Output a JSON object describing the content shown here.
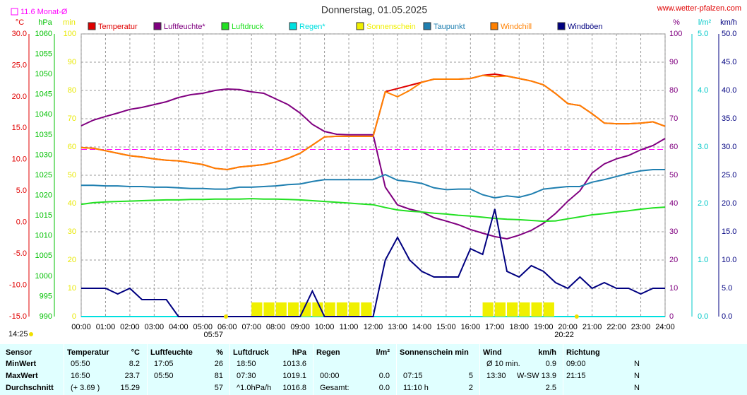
{
  "chart_data": {
    "type": "line",
    "title": "Donnerstag, 01.05.2025",
    "source": "www.wetter-pfalzen.com",
    "monthly_mean": {
      "label": "11.6 Monat-Ø",
      "value": 11.6,
      "color": "#ff00ff"
    },
    "current_time": "14:25",
    "sunrise": {
      "label": "05:57",
      "value": 5.95
    },
    "sunset": {
      "label": "20:22",
      "value": 20.367
    },
    "grid": true,
    "xlim": [
      0,
      24
    ],
    "xticks": [
      {
        "value": 0,
        "label": "00:00"
      },
      {
        "value": 1,
        "label": "01:00"
      },
      {
        "value": 2,
        "label": "02:00"
      },
      {
        "value": 3,
        "label": "03:00"
      },
      {
        "value": 4,
        "label": "04:00"
      },
      {
        "value": 5,
        "label": "05:00"
      },
      {
        "value": 6,
        "label": "06:00"
      },
      {
        "value": 7,
        "label": "07:00"
      },
      {
        "value": 8,
        "label": "08:00"
      },
      {
        "value": 9,
        "label": "09:00"
      },
      {
        "value": 10,
        "label": "10:00"
      },
      {
        "value": 11,
        "label": "11:00"
      },
      {
        "value": 12,
        "label": "12:00"
      },
      {
        "value": 13,
        "label": "13:00"
      },
      {
        "value": 14,
        "label": "14:00"
      },
      {
        "value": 15,
        "label": "15:00"
      },
      {
        "value": 16,
        "label": "16:00"
      },
      {
        "value": 17,
        "label": "17:00"
      },
      {
        "value": 18,
        "label": "18:00"
      },
      {
        "value": 19,
        "label": "19:00"
      },
      {
        "value": 20,
        "label": "20:00"
      },
      {
        "value": 21,
        "label": "21:00"
      },
      {
        "value": 22,
        "label": "22:00"
      },
      {
        "value": 23,
        "label": "23:00"
      },
      {
        "value": 24,
        "label": "24:00"
      }
    ],
    "axes": [
      {
        "name": "°C",
        "color": "#e00000",
        "lim": [
          -15,
          30
        ],
        "ticks": [
          {
            "value": -15,
            "label": "-15.0"
          },
          {
            "value": -10,
            "label": "-10.0"
          },
          {
            "value": -5,
            "label": "-5.0"
          },
          {
            "value": 0,
            "label": "0.0"
          },
          {
            "value": 5,
            "label": "5.0"
          },
          {
            "value": 10,
            "label": "10.0"
          },
          {
            "value": 15,
            "label": "15.0"
          },
          {
            "value": 20,
            "label": "20.0"
          },
          {
            "value": 25,
            "label": "25.0"
          },
          {
            "value": 30,
            "label": "30.0"
          }
        ]
      },
      {
        "name": "hPa",
        "color": "#00c000",
        "lim": [
          990,
          1060
        ],
        "ticks": [
          990,
          995,
          1000,
          1005,
          1010,
          1015,
          1020,
          1025,
          1030,
          1035,
          1040,
          1045,
          1050,
          1055,
          1060
        ]
      },
      {
        "name": "min",
        "color": "#e8e800",
        "lim": [
          0,
          100
        ],
        "ticks": [
          0,
          10,
          20,
          30,
          40,
          50,
          60,
          70,
          80,
          90,
          100
        ]
      },
      {
        "name": "%",
        "color": "#800080",
        "lim": [
          0,
          100
        ],
        "ticks": [
          0,
          10,
          20,
          30,
          40,
          50,
          60,
          70,
          80,
          90,
          100
        ]
      },
      {
        "name": "l/m²",
        "color": "#00c8c8",
        "lim": [
          0,
          5
        ],
        "ticks": [
          {
            "value": 0,
            "label": "0.0"
          },
          {
            "value": 1,
            "label": "1.0"
          },
          {
            "value": 2,
            "label": "2.0"
          },
          {
            "value": 3,
            "label": "3.0"
          },
          {
            "value": 4,
            "label": "4.0"
          },
          {
            "value": 5,
            "label": "5.0"
          }
        ]
      },
      {
        "name": "km/h",
        "color": "#000080",
        "lim": [
          0,
          50
        ],
        "ticks": [
          {
            "value": 0,
            "label": "0.0"
          },
          {
            "value": 5,
            "label": "5.0"
          },
          {
            "value": 10,
            "label": "10.0"
          },
          {
            "value": 15,
            "label": "15.0"
          },
          {
            "value": 20,
            "label": "20.0"
          },
          {
            "value": 25,
            "label": "25.0"
          },
          {
            "value": 30,
            "label": "30.0"
          },
          {
            "value": 35,
            "label": "35.0"
          },
          {
            "value": 40,
            "label": "40.0"
          },
          {
            "value": 45,
            "label": "45.0"
          },
          {
            "value": 50,
            "label": "50.0"
          }
        ]
      }
    ],
    "x": [
      0,
      0.5,
      1,
      1.5,
      2,
      2.5,
      3,
      3.5,
      4,
      4.5,
      5,
      5.5,
      6,
      6.5,
      7,
      7.5,
      8,
      8.5,
      9,
      9.5,
      10,
      10.5,
      11,
      11.5,
      12,
      12.5,
      13,
      13.5,
      14,
      14.5,
      15,
      15.5,
      16,
      16.5,
      17,
      17.5,
      18,
      18.5,
      19,
      19.5,
      20,
      20.5,
      21,
      21.5,
      22,
      22.5,
      23,
      23.5,
      24
    ],
    "series": [
      {
        "name": "Temperatur",
        "color": "#e00000",
        "axis": 0,
        "values": [
          11.9,
          11.8,
          11.4,
          11.0,
          10.6,
          10.4,
          10.1,
          9.9,
          9.8,
          9.5,
          9.2,
          8.6,
          8.4,
          8.8,
          9.0,
          9.2,
          9.6,
          10.2,
          11.0,
          12.3,
          13.6,
          13.7,
          13.7,
          13.7,
          13.7,
          20.8,
          21.3,
          21.8,
          22.3,
          22.8,
          22.8,
          22.8,
          22.9,
          23.4,
          23.6,
          23.3,
          22.9,
          22.5,
          21.9,
          20.5,
          18.9,
          18.6,
          17.3,
          15.8,
          15.7,
          15.7,
          15.8,
          16.0,
          15.3
        ]
      },
      {
        "name": "Luftfeuchte*",
        "color": "#800080",
        "axis": 3,
        "values": [
          67.5,
          69.5,
          70.8,
          72,
          73.3,
          74,
          75,
          76,
          77.5,
          78.5,
          79,
          80,
          80.5,
          80.3,
          79.5,
          79,
          77,
          75,
          72,
          68,
          65.5,
          64.5,
          64.3,
          64.3,
          64.3,
          45.8,
          39.5,
          38,
          37,
          35,
          33.8,
          32.5,
          30.8,
          29.5,
          28.3,
          27.5,
          28.8,
          30.5,
          33,
          36.5,
          40.8,
          44.5,
          50.8,
          54,
          55.8,
          57,
          59,
          60.5,
          63
        ]
      },
      {
        "name": "Luftdruck",
        "color": "#22e022",
        "axis": 1,
        "values": [
          1017.8,
          1018.2,
          1018.4,
          1018.5,
          1018.6,
          1018.7,
          1018.8,
          1018.9,
          1018.9,
          1019.0,
          1019.0,
          1019.1,
          1019.1,
          1019.1,
          1019.2,
          1019.1,
          1019.1,
          1019.0,
          1018.9,
          1018.7,
          1018.5,
          1018.3,
          1018.1,
          1017.9,
          1017.7,
          1017.0,
          1016.4,
          1016.1,
          1015.9,
          1015.6,
          1015.4,
          1015.1,
          1014.9,
          1014.6,
          1014.3,
          1014.1,
          1014.0,
          1013.8,
          1013.6,
          1013.7,
          1014.2,
          1014.7,
          1015.2,
          1015.5,
          1015.9,
          1016.2,
          1016.6,
          1016.9,
          1017.1
        ]
      },
      {
        "name": "Regen*",
        "color": "#00e0e0",
        "axis": 4,
        "values": [
          0,
          0,
          0,
          0,
          0,
          0,
          0,
          0,
          0,
          0,
          0,
          0,
          0,
          0,
          0,
          0,
          0,
          0,
          0,
          0,
          0,
          0,
          0,
          0,
          0,
          0,
          0,
          0,
          0,
          0,
          0,
          0,
          0,
          0,
          0,
          0,
          0,
          0,
          0,
          0,
          0,
          0,
          0,
          0,
          0,
          0,
          0,
          0,
          0
        ]
      },
      {
        "name": "Sonnenschein",
        "color": "#f0f000",
        "axis": 2,
        "type": "bar",
        "values": [
          0,
          0,
          0,
          0,
          0,
          0,
          0,
          0,
          0,
          0,
          0,
          0,
          0,
          0,
          5,
          5,
          5,
          5,
          5,
          5,
          5,
          5,
          5,
          5,
          0,
          0,
          0,
          0,
          0,
          0,
          0,
          0,
          0,
          5,
          5,
          5,
          5,
          5,
          5,
          0,
          0,
          0,
          0,
          0,
          0,
          0,
          0,
          0,
          0
        ]
      },
      {
        "name": "Taupunkt",
        "color": "#1f7fb0",
        "axis": 0,
        "values": [
          5.9,
          5.9,
          5.8,
          5.8,
          5.7,
          5.7,
          5.6,
          5.6,
          5.5,
          5.4,
          5.4,
          5.3,
          5.3,
          5.6,
          5.6,
          5.7,
          5.8,
          6.0,
          6.1,
          6.5,
          6.8,
          6.8,
          6.8,
          6.8,
          6.8,
          7.6,
          6.7,
          6.5,
          6.2,
          5.5,
          5.2,
          5.3,
          5.3,
          4.4,
          3.9,
          4.2,
          4.0,
          4.5,
          5.3,
          5.5,
          5.7,
          5.7,
          6.4,
          6.8,
          7.3,
          7.8,
          8.2,
          8.4,
          8.4
        ]
      },
      {
        "name": "Windchill",
        "color": "#ff8000",
        "axis": 0,
        "values": [
          11.9,
          11.8,
          11.4,
          11.0,
          10.6,
          10.4,
          10.1,
          9.9,
          9.8,
          9.5,
          9.2,
          8.6,
          8.4,
          8.8,
          9.0,
          9.2,
          9.6,
          10.2,
          11.0,
          12.3,
          13.6,
          13.7,
          13.7,
          13.7,
          13.7,
          20.8,
          20.0,
          21.0,
          22.3,
          22.8,
          22.8,
          22.8,
          22.9,
          23.4,
          23.2,
          23.3,
          22.9,
          22.5,
          21.9,
          20.5,
          18.9,
          18.6,
          17.3,
          15.8,
          15.7,
          15.7,
          15.8,
          16.0,
          15.3
        ]
      },
      {
        "name": "Windböen",
        "color": "#000080",
        "axis": 5,
        "values": [
          5,
          5,
          5,
          4,
          5,
          3,
          3,
          3,
          0,
          0,
          0,
          0,
          0,
          0,
          0,
          0,
          0,
          0,
          0,
          4.5,
          0,
          0,
          0,
          0,
          0,
          10,
          14,
          10,
          8,
          7,
          7,
          7,
          12,
          11,
          19,
          8,
          7,
          9,
          8,
          6,
          5,
          7,
          5,
          6,
          5,
          5,
          4,
          5,
          5
        ]
      }
    ]
  },
  "table": {
    "columns": [
      {
        "header": "Sensor",
        "unit": null
      },
      {
        "header": "Temperatur",
        "unit": "°C"
      },
      {
        "header": "Luftfeuchte",
        "unit": "%"
      },
      {
        "header": "Luftdruck",
        "unit": "hPa"
      },
      {
        "header": "Regen",
        "unit": "l/m²"
      },
      {
        "header": "Sonnenschein min",
        "unit": null
      },
      {
        "header": "Wind",
        "unit": "km/h"
      },
      {
        "header": "Richtung",
        "unit": null
      }
    ],
    "rows": [
      {
        "label": "MinWert",
        "cells": [
          [
            "05:50",
            "8.2"
          ],
          [
            "17:05",
            "26"
          ],
          [
            "18:50",
            "1013.6"
          ],
          [
            null,
            null
          ],
          [
            null,
            null
          ],
          [
            "Ø 10 min.",
            "0.9"
          ],
          [
            "09:00",
            "N"
          ]
        ]
      },
      {
        "label": "MaxWert",
        "cells": [
          [
            "16:50",
            "23.7"
          ],
          [
            "05:50",
            "81"
          ],
          [
            "07:30",
            "1019.1"
          ],
          [
            "00:00",
            "0.0"
          ],
          [
            "07:15",
            "5"
          ],
          [
            "13:30",
            "W-SW 13.9"
          ],
          [
            "21:15",
            "N"
          ]
        ]
      },
      {
        "label": "Durchschnitt",
        "cells": [
          [
            "(+ 3.69 )",
            "15.29"
          ],
          [
            null,
            "57"
          ],
          [
            "^1.0hPa/h",
            "1016.8"
          ],
          [
            "Gesamt:",
            "0.0"
          ],
          [
            "11:10 h",
            "2"
          ],
          [
            null,
            "2.5"
          ],
          [
            null,
            "N"
          ]
        ]
      }
    ]
  }
}
